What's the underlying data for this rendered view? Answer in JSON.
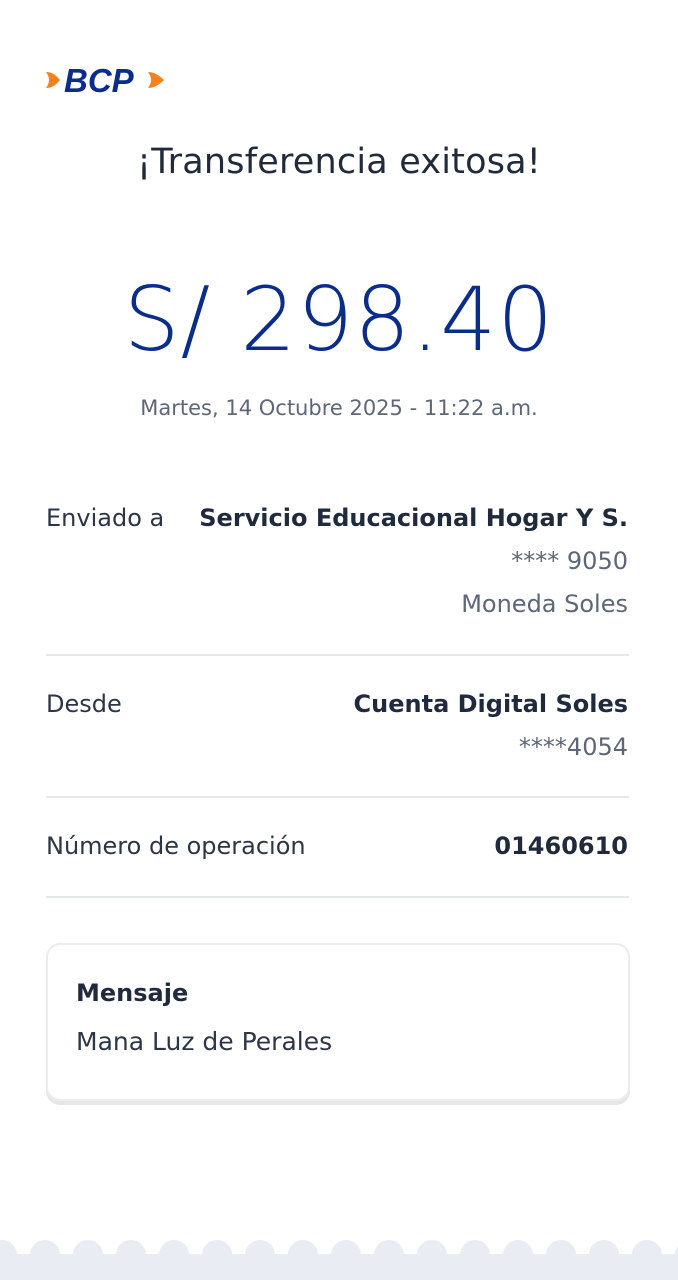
{
  "brand": {
    "name": "BCP",
    "colors": {
      "blue": "#0a2d8c",
      "orange": "#f58220"
    }
  },
  "header": {
    "title": "¡Transferencia exitosa!"
  },
  "amount": "S/ 298.40",
  "date": "Martes, 14 Octubre 2025 - 11:22 a.m.",
  "details": {
    "sent_to": {
      "label": "Enviado a",
      "name": "Servicio Educacional Hogar Y S.",
      "account": "**** 9050",
      "currency": "Moneda Soles"
    },
    "from": {
      "label": "Desde",
      "name": "Cuenta Digital Soles",
      "account": "****4054"
    },
    "operation": {
      "label": "Número de operación",
      "value": "01460610"
    }
  },
  "message": {
    "title": "Mensaje",
    "text": "Mana Luz de Perales"
  }
}
